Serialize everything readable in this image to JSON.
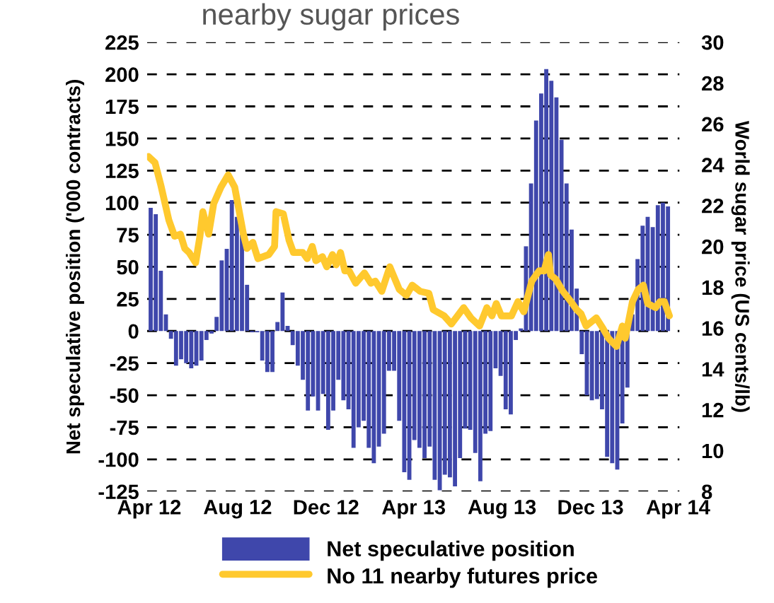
{
  "chart_data": {
    "type": "bar",
    "title": "nearby sugar prices",
    "ylabel": "Net speculative position ('000 contracts)",
    "y2label": "World sugar price (US cents/lb)",
    "xlim": [
      "2012-03-29",
      "2014-04-03"
    ],
    "xticks": [
      {
        "value": "2012-04-01",
        "label": "Apr 12"
      },
      {
        "value": "2012-08-01",
        "label": "Aug 12"
      },
      {
        "value": "2012-12-01",
        "label": "Dec 12"
      },
      {
        "value": "2013-04-01",
        "label": "Apr 13"
      },
      {
        "value": "2013-08-01",
        "label": "Aug 13"
      },
      {
        "value": "2013-12-01",
        "label": "Dec 13"
      },
      {
        "value": "2014-04-01",
        "label": "Apr 14"
      }
    ],
    "ylim": [
      -125,
      225
    ],
    "yticks": [
      -125,
      -100,
      -75,
      -50,
      -25,
      0,
      25,
      50,
      75,
      100,
      125,
      150,
      175,
      200,
      225
    ],
    "y2lim": [
      8,
      30
    ],
    "y2ticks": [
      8,
      10,
      12,
      14,
      16,
      18,
      20,
      22,
      24,
      26,
      28,
      30
    ],
    "grid": "y",
    "legend": "bottom",
    "series": [
      {
        "name": "Net speculative position",
        "color": "#3f47ab",
        "x": [
          "2012-04-03",
          "2012-04-10",
          "2012-04-17",
          "2012-04-24",
          "2012-05-01",
          "2012-05-08",
          "2012-05-15",
          "2012-05-22",
          "2012-05-29",
          "2012-06-05",
          "2012-06-12",
          "2012-06-19",
          "2012-06-26",
          "2012-07-03",
          "2012-07-10",
          "2012-07-17",
          "2012-07-24",
          "2012-07-31",
          "2012-08-07",
          "2012-08-14",
          "2012-08-21",
          "2012-08-28",
          "2012-09-04",
          "2012-09-11",
          "2012-09-18",
          "2012-09-25",
          "2012-10-02",
          "2012-10-09",
          "2012-10-16",
          "2012-10-23",
          "2012-10-30",
          "2012-11-06",
          "2012-11-13",
          "2012-11-20",
          "2012-11-27",
          "2012-12-04",
          "2012-12-11",
          "2012-12-18",
          "2012-12-25",
          "2013-01-01",
          "2013-01-08",
          "2013-01-15",
          "2013-01-22",
          "2013-01-29",
          "2013-02-05",
          "2013-02-12",
          "2013-02-19",
          "2013-02-26",
          "2013-03-05",
          "2013-03-12",
          "2013-03-19",
          "2013-03-26",
          "2013-04-02",
          "2013-04-09",
          "2013-04-16",
          "2013-04-23",
          "2013-04-30",
          "2013-05-07",
          "2013-05-14",
          "2013-05-21",
          "2013-05-28",
          "2013-06-04",
          "2013-06-11",
          "2013-06-18",
          "2013-06-25",
          "2013-07-02",
          "2013-07-09",
          "2013-07-16",
          "2013-07-23",
          "2013-07-30",
          "2013-08-06",
          "2013-08-13",
          "2013-08-20",
          "2013-08-27",
          "2013-09-03",
          "2013-09-10",
          "2013-09-17",
          "2013-09-24",
          "2013-10-01",
          "2013-10-08",
          "2013-10-15",
          "2013-10-22",
          "2013-10-29",
          "2013-11-05",
          "2013-11-12",
          "2013-11-19",
          "2013-11-26",
          "2013-12-03",
          "2013-12-10",
          "2013-12-17",
          "2013-12-24",
          "2013-12-31",
          "2014-01-07",
          "2014-01-14",
          "2014-01-21",
          "2014-01-28",
          "2014-02-04",
          "2014-02-11",
          "2014-02-18",
          "2014-02-25",
          "2014-03-04",
          "2014-03-11",
          "2014-03-18"
        ],
        "values": [
          96,
          91,
          47,
          13,
          -6,
          -27,
          -22,
          -25,
          -29,
          -27,
          -23,
          -7,
          -2,
          11,
          55,
          64,
          102,
          89,
          75,
          36,
          -1,
          -1,
          -23,
          -32,
          -32,
          7,
          30,
          4,
          -11,
          -27,
          -38,
          -62,
          -51,
          -62,
          -49,
          -77,
          -62,
          -38,
          -54,
          -61,
          -91,
          -75,
          -70,
          -91,
          -103,
          -90,
          -80,
          -31,
          -31,
          -70,
          -110,
          -116,
          -85,
          -91,
          -99,
          -90,
          -116,
          -124,
          -112,
          -114,
          -121,
          -99,
          -76,
          -77,
          -95,
          -117,
          -80,
          -78,
          -29,
          -35,
          -61,
          -65,
          -7,
          2,
          66,
          115,
          164,
          185,
          204,
          195,
          182,
          149,
          115,
          79,
          33,
          -18,
          -50,
          -54,
          -53,
          -61,
          -98,
          -103,
          -108,
          -72,
          -44,
          13,
          56,
          82,
          89,
          81,
          98,
          100,
          97
        ]
      },
      {
        "name": "No 11 nearby futures price",
        "type": "line",
        "axis": "y2",
        "color": "#ffc92e",
        "line_style": "solid",
        "marker": "none",
        "x": [
          "2012-03-31",
          "2012-04-09",
          "2012-04-17",
          "2012-04-28",
          "2012-05-06",
          "2012-05-14",
          "2012-05-20",
          "2012-05-26",
          "2012-06-04",
          "2012-06-10",
          "2012-06-14",
          "2012-06-22",
          "2012-06-29",
          "2012-07-09",
          "2012-07-19",
          "2012-07-28",
          "2012-08-09",
          "2012-08-14",
          "2012-08-22",
          "2012-08-29",
          "2012-09-13",
          "2012-09-21",
          "2012-09-23",
          "2012-10-03",
          "2012-10-11",
          "2012-10-17",
          "2012-10-30",
          "2012-11-05",
          "2012-11-12",
          "2012-11-17",
          "2012-11-26",
          "2012-12-02",
          "2012-12-10",
          "2012-12-15",
          "2012-12-21",
          "2012-12-27",
          "2013-01-02",
          "2013-01-11",
          "2013-01-23",
          "2013-02-01",
          "2013-02-07",
          "2013-02-16",
          "2013-02-27",
          "2013-03-12",
          "2013-03-22",
          "2013-03-30",
          "2013-04-10",
          "2013-04-22",
          "2013-04-28",
          "2013-05-13",
          "2013-05-23",
          "2013-06-09",
          "2013-06-19",
          "2013-07-01",
          "2013-07-11",
          "2013-07-18",
          "2013-07-24",
          "2013-07-31",
          "2013-08-14",
          "2013-08-23",
          "2013-08-31",
          "2013-09-11",
          "2013-09-21",
          "2013-09-28",
          "2013-10-04",
          "2013-10-07",
          "2013-10-14",
          "2013-10-24",
          "2013-11-04",
          "2013-11-12",
          "2013-11-18",
          "2013-11-25",
          "2013-12-09",
          "2013-12-18",
          "2013-12-26",
          "2014-01-06",
          "2014-01-14",
          "2014-01-18",
          "2014-01-28",
          "2014-02-05",
          "2014-02-12",
          "2014-02-18",
          "2014-03-01",
          "2014-03-07",
          "2014-03-13",
          "2014-03-20"
        ],
        "values": [
          24.4,
          24.1,
          23.0,
          21.3,
          20.5,
          20.6,
          19.9,
          19.7,
          19.2,
          20.5,
          21.7,
          20.6,
          22.1,
          22.9,
          23.5,
          22.9,
          20.6,
          19.9,
          20.2,
          19.4,
          19.6,
          20.0,
          21.7,
          21.6,
          20.3,
          19.7,
          19.7,
          19.4,
          20.0,
          19.3,
          19.5,
          19.0,
          19.6,
          19.1,
          19.7,
          18.8,
          18.8,
          18.2,
          18.7,
          18.2,
          18.3,
          17.8,
          19.0,
          17.9,
          17.6,
          18.1,
          17.8,
          17.7,
          16.9,
          16.6,
          16.2,
          17.0,
          16.5,
          16.1,
          17.0,
          16.6,
          17.2,
          16.6,
          16.6,
          17.3,
          16.8,
          18.3,
          18.8,
          18.8,
          19.6,
          18.6,
          18.4,
          17.8,
          17.3,
          16.9,
          16.7,
          16.1,
          16.5,
          16.0,
          15.5,
          15.1,
          16.1,
          15.5,
          17.3,
          17.9,
          18.1,
          17.2,
          17.0,
          17.3,
          17.3,
          16.6
        ]
      }
    ]
  }
}
